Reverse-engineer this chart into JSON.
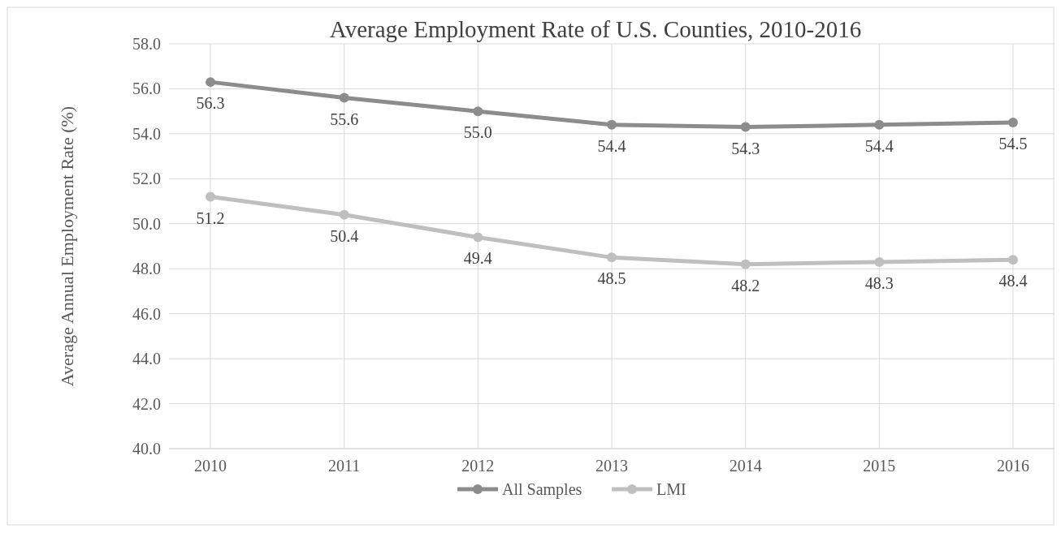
{
  "chart_data": {
    "type": "line",
    "title": "Average Employment Rate of U.S. Counties, 2010-2016",
    "ylabel": "Average Annual Employment Rate (%)",
    "categories": [
      "2010",
      "2011",
      "2012",
      "2013",
      "2014",
      "2015",
      "2016"
    ],
    "series": [
      {
        "name": "All Samples",
        "color": "#8c8c8c",
        "values": [
          56.3,
          55.6,
          55.0,
          54.4,
          54.3,
          54.4,
          54.5
        ],
        "value_labels": [
          "56.3",
          "55.6",
          "55.0",
          "54.4",
          "54.3",
          "54.4",
          "54.5"
        ]
      },
      {
        "name": "LMI",
        "color": "#bfbfbf",
        "values": [
          51.2,
          50.4,
          49.4,
          48.5,
          48.2,
          48.3,
          48.4
        ],
        "value_labels": [
          "51.2",
          "50.4",
          "49.4",
          "48.5",
          "48.2",
          "48.3",
          "48.4"
        ]
      }
    ],
    "ylim": [
      40,
      58
    ],
    "yticks": [
      {
        "value": 40,
        "label": "40.0"
      },
      {
        "value": 42,
        "label": "42.0"
      },
      {
        "value": 44,
        "label": "44.0"
      },
      {
        "value": 46,
        "label": "46.0"
      },
      {
        "value": 48,
        "label": "48.0"
      },
      {
        "value": 50,
        "label": "50.0"
      },
      {
        "value": 52,
        "label": "52.0"
      },
      {
        "value": 54,
        "label": "54.0"
      },
      {
        "value": 56,
        "label": "56.0"
      },
      {
        "value": 58,
        "label": "58.0"
      }
    ],
    "grid": true,
    "legend": "bottom",
    "marker": "circle",
    "line_style": "solid"
  }
}
